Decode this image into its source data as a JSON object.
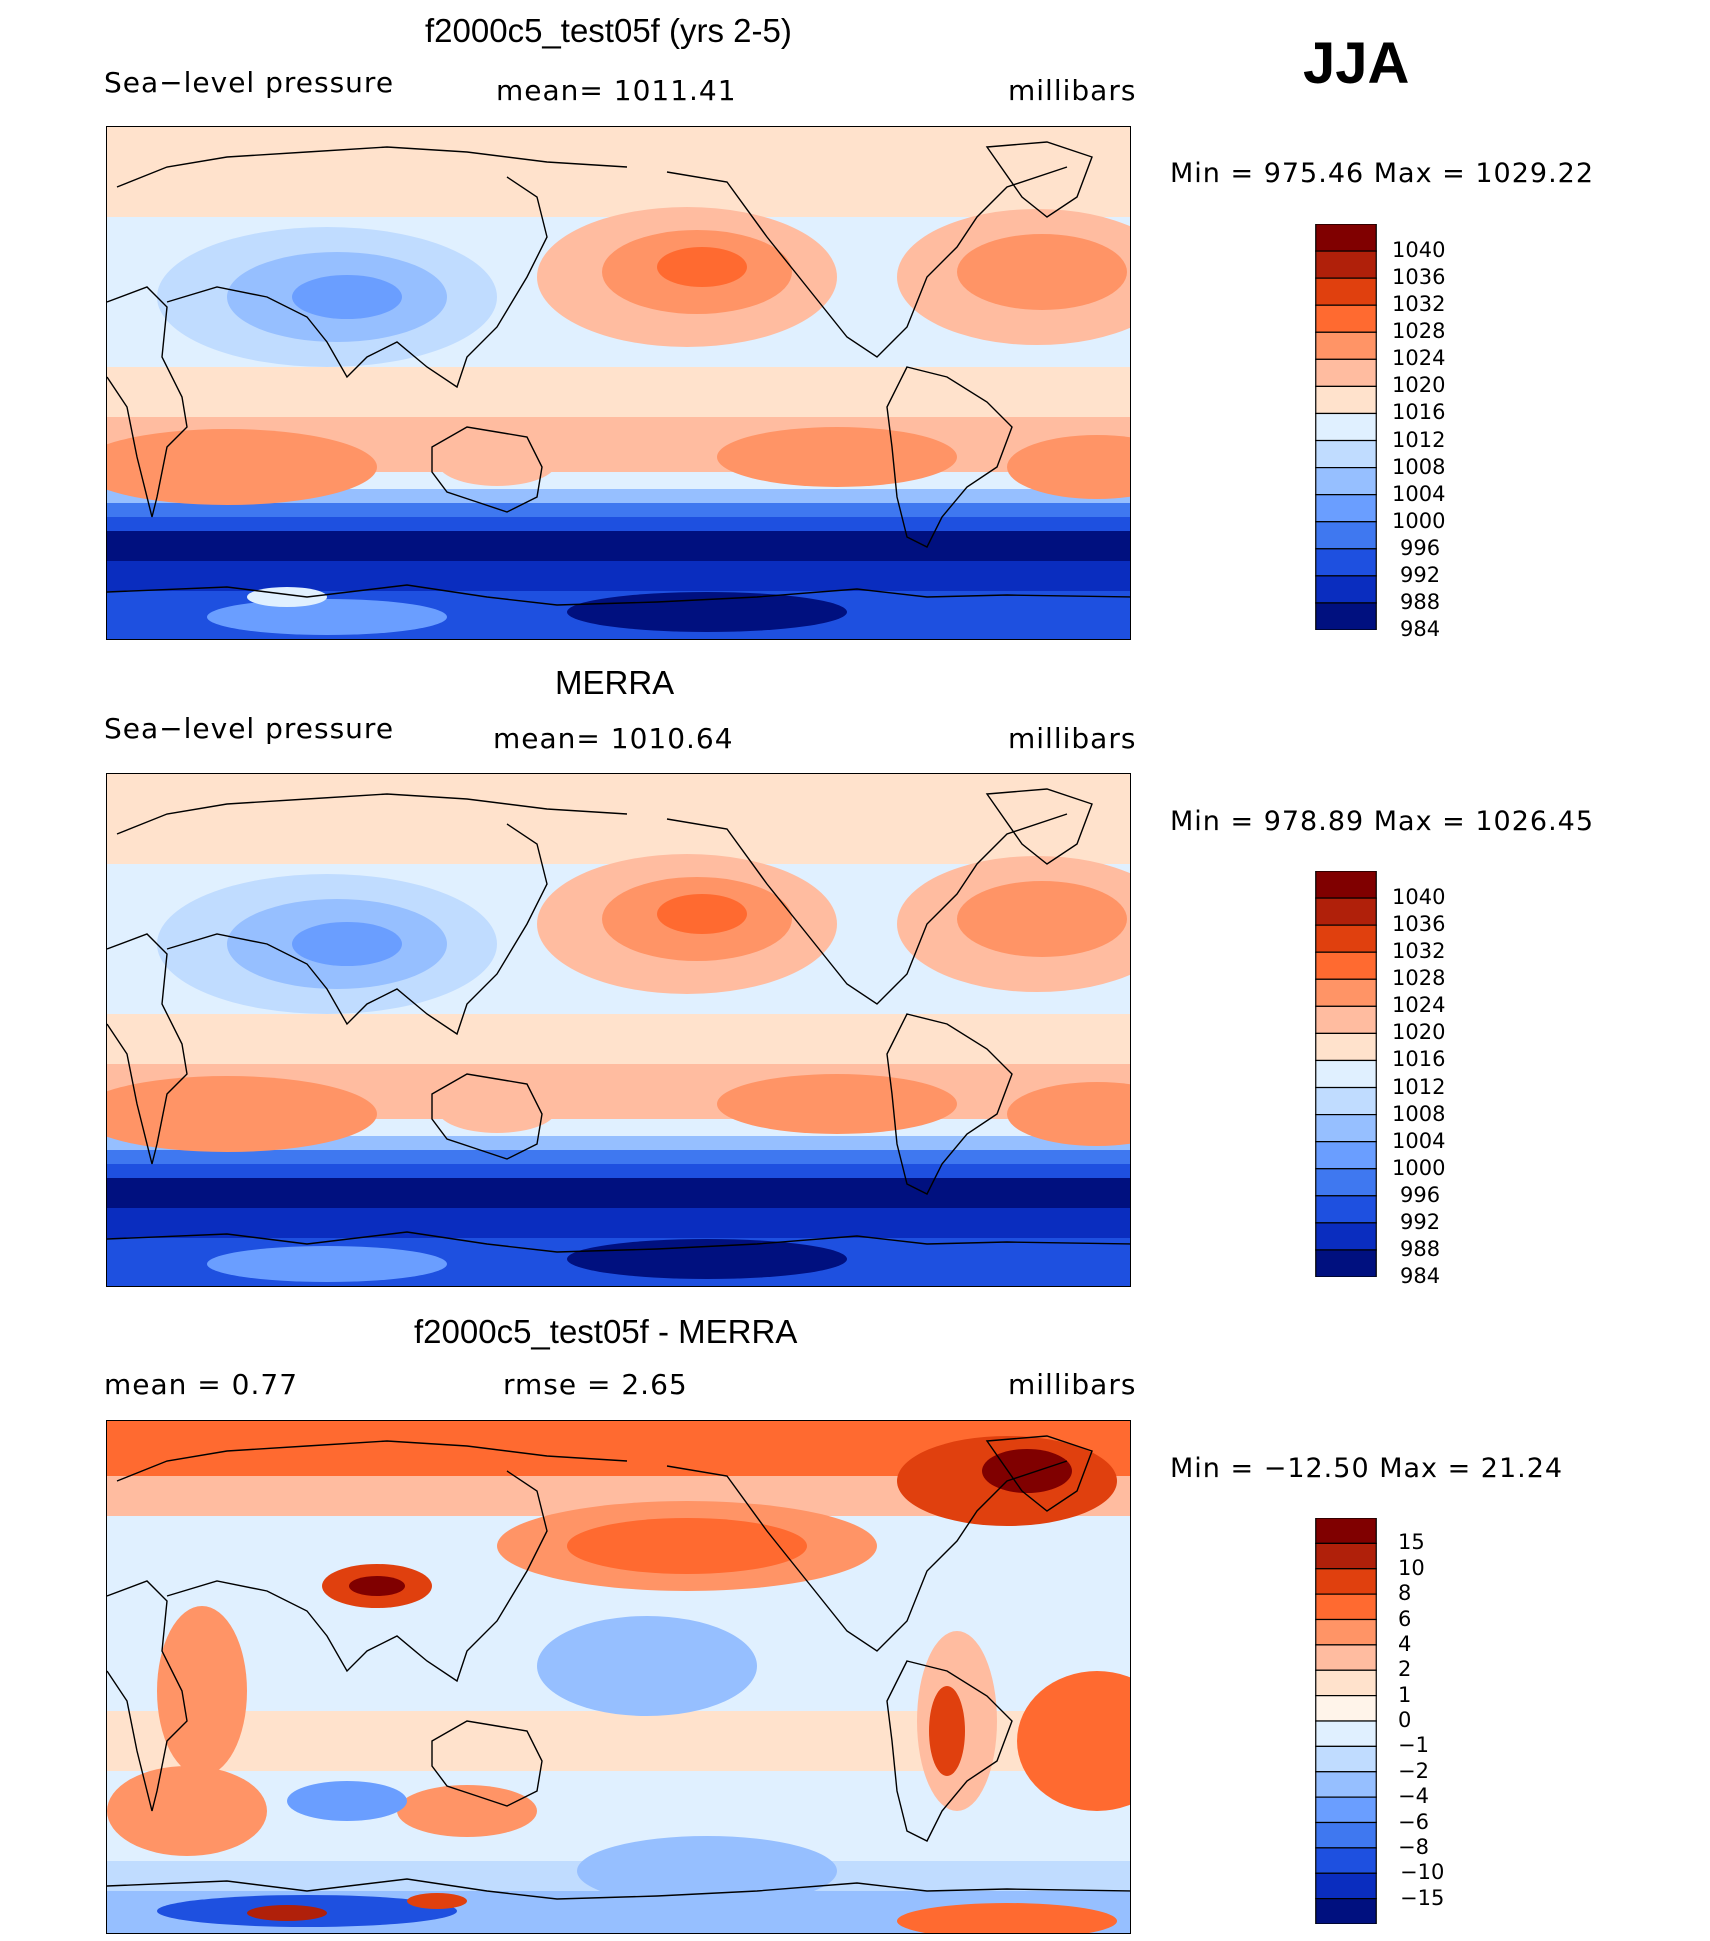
{
  "season": "JJA",
  "panels": [
    {
      "title": "f2000c5_test05f (yrs 2-5)",
      "left_label": "Sea−level pressure",
      "center_label": "mean=  1011.41",
      "units": "millibars",
      "minmax": "Min  =  975.46  Max  =  1029.22",
      "colorbar": {
        "labels": [
          "1040",
          "1036",
          "1032",
          "1028",
          "1024",
          "1020",
          "1016",
          "1012",
          "1008",
          "1004",
          "1000",
          "996",
          "992",
          "988",
          "984"
        ],
        "colors": [
          "#800000",
          "#b0200a",
          "#e0400e",
          "#ff6a30",
          "#ff9466",
          "#ffbca0",
          "#ffe2cc",
          "#e0f0ff",
          "#c0dcff",
          "#96bfff",
          "#6a9eff",
          "#3f78f0",
          "#1e50e0",
          "#0a2dbf",
          "#00107f"
        ]
      },
      "map_label": "model sea-level pressure map"
    },
    {
      "title": "MERRA",
      "left_label": "Sea−level pressure",
      "center_label": "mean=  1010.64",
      "units": "millibars",
      "minmax": "Min  =  978.89  Max  =  1026.45",
      "colorbar": {
        "labels": [
          "1040",
          "1036",
          "1032",
          "1028",
          "1024",
          "1020",
          "1016",
          "1012",
          "1008",
          "1004",
          "1000",
          "996",
          "992",
          "988",
          "984"
        ],
        "colors": [
          "#800000",
          "#b0200a",
          "#e0400e",
          "#ff6a30",
          "#ff9466",
          "#ffbca0",
          "#ffe2cc",
          "#e0f0ff",
          "#c0dcff",
          "#96bfff",
          "#6a9eff",
          "#3f78f0",
          "#1e50e0",
          "#0a2dbf",
          "#00107f"
        ]
      },
      "map_label": "MERRA sea-level pressure map"
    },
    {
      "title": "f2000c5_test05f - MERRA",
      "left_label": "mean =     0.77",
      "center_label": "rmse =     2.65",
      "units": "millibars",
      "minmax": "Min  =  −12.50  Max  =    21.24",
      "colorbar": {
        "labels": [
          "15",
          "10",
          "8",
          "6",
          "4",
          "2",
          "1",
          "0",
          "−1",
          "−2",
          "−4",
          "−6",
          "−8",
          "−10",
          "−15"
        ],
        "colors": [
          "#800000",
          "#b0200a",
          "#e0400e",
          "#ff6a30",
          "#ff9466",
          "#ffbca0",
          "#ffe2cc",
          "#fff4ea",
          "#e0f0ff",
          "#c0dcff",
          "#96bfff",
          "#6a9eff",
          "#3f78f0",
          "#1e50e0",
          "#0a2dbf",
          "#00107f"
        ]
      },
      "map_label": "difference map"
    }
  ]
}
